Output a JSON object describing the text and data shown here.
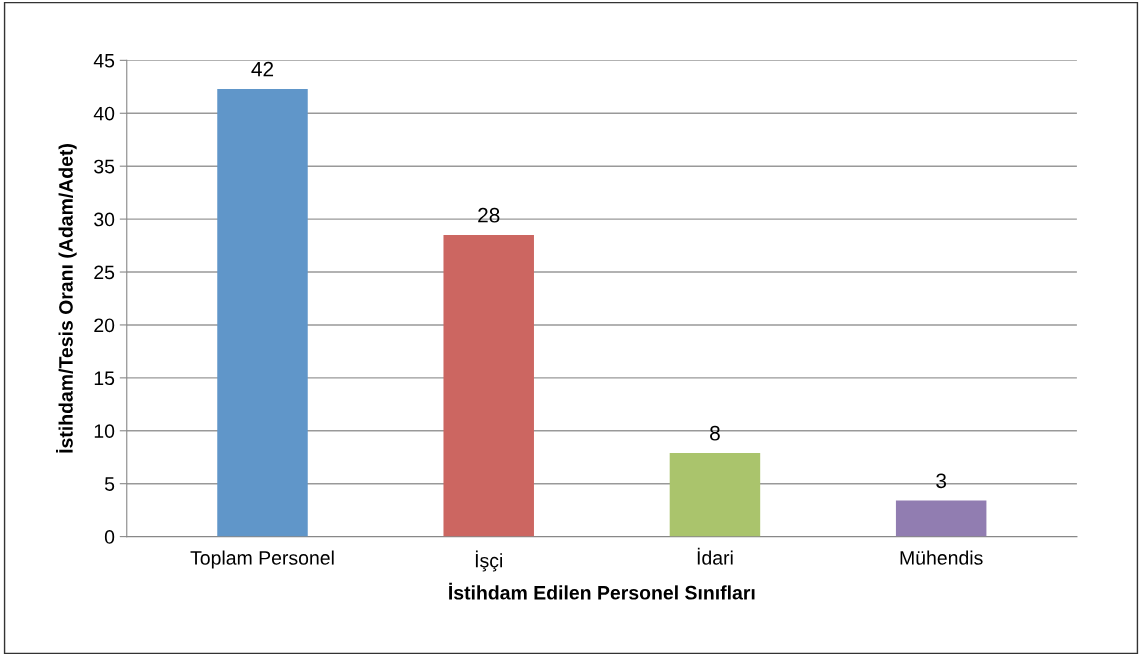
{
  "chart_data": {
    "type": "bar",
    "xlabel": "İstihdam Edilen Personel Sınıfları",
    "ylabel": "İstihdam/Tesis Oranı (Adam/Adet)",
    "categories": [
      "Toplam Personel",
      "İşçi",
      "İdari",
      "Mühendis"
    ],
    "values": [
      42.3,
      28.5,
      7.9,
      3.4
    ],
    "value_labels": [
      "42",
      "28",
      "8",
      "3"
    ],
    "colors": [
      "#6096c9",
      "#cc6661",
      "#aac46c",
      "#917db1"
    ],
    "ylim": [
      0,
      45
    ],
    "yticks": [
      0,
      5,
      10,
      15,
      20,
      25,
      30,
      35,
      40,
      45
    ],
    "grid": "y"
  }
}
